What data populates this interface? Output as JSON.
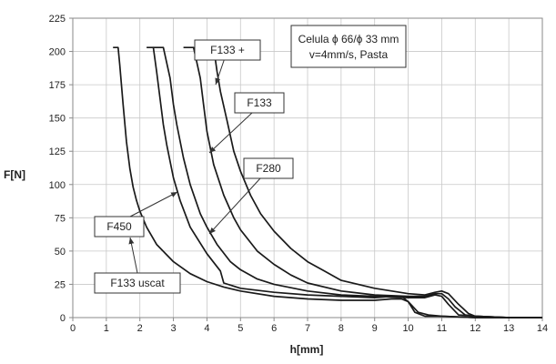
{
  "chart_data": {
    "type": "line",
    "title": "",
    "xlabel": "h[mm]",
    "ylabel": "F[N]",
    "xlim": [
      0,
      14
    ],
    "ylim": [
      0,
      225
    ],
    "x_ticks": [
      0,
      1,
      2,
      3,
      4,
      5,
      6,
      7,
      8,
      9,
      10,
      11,
      12,
      13,
      14
    ],
    "y_ticks": [
      0,
      25,
      50,
      75,
      100,
      125,
      150,
      175,
      200,
      225
    ],
    "grid": true,
    "line_color": "#1a1a1a",
    "info_box": [
      "Celula ϕ 66/ϕ 33 mm",
      "v=4mm/s, Pasta"
    ],
    "series": [
      {
        "name": "F133 uscat",
        "x": [
          1.2,
          1.35,
          1.4,
          1.5,
          1.6,
          1.7,
          1.8,
          1.9,
          2.0,
          2.2,
          2.5,
          3.0,
          3.5,
          4.0,
          4.5,
          5.0,
          6.0,
          7.0,
          8.0,
          9.0,
          9.5,
          9.8,
          10.0,
          10.2,
          10.5,
          11.0,
          12.0,
          13.0,
          14.0
        ],
        "y": [
          203,
          203,
          190,
          160,
          132,
          112,
          98,
          88,
          80,
          68,
          55,
          42,
          33,
          27,
          23,
          20,
          16,
          14,
          13,
          13,
          14,
          14,
          12,
          4,
          1,
          1,
          0,
          0,
          0
        ]
      },
      {
        "name": "F450",
        "x": [
          2.2,
          2.4,
          2.5,
          2.6,
          2.7,
          2.8,
          3.0,
          3.2,
          3.5,
          4.0,
          4.4,
          4.5,
          5.0,
          6.0,
          7.0,
          8.0,
          9.0,
          9.5,
          9.8,
          10.0,
          10.3,
          10.6,
          11.0,
          12.0,
          13.0,
          14.0
        ],
        "y": [
          203,
          203,
          185,
          165,
          145,
          130,
          105,
          88,
          68,
          48,
          35,
          26,
          22,
          19,
          17,
          16,
          15,
          16,
          16,
          12,
          4,
          2,
          1,
          0,
          0,
          0
        ]
      },
      {
        "name": "F280",
        "x": [
          2.4,
          2.7,
          2.9,
          3.0,
          3.1,
          3.3,
          3.5,
          3.8,
          4.0,
          4.3,
          4.7,
          5.0,
          5.5,
          6.0,
          7.0,
          8.0,
          9.0,
          10.0,
          10.5,
          10.8,
          11.0,
          11.2,
          11.5,
          12.0,
          13.0,
          14.0
        ],
        "y": [
          203,
          203,
          180,
          160,
          145,
          120,
          100,
          78,
          68,
          55,
          42,
          36,
          29,
          25,
          20,
          17,
          16,
          15,
          15,
          17,
          16,
          10,
          2,
          1,
          0,
          0
        ]
      },
      {
        "name": "F133",
        "x": [
          3.3,
          3.6,
          3.8,
          3.9,
          4.0,
          4.2,
          4.5,
          4.8,
          5.0,
          5.5,
          6.0,
          6.5,
          7.0,
          8.0,
          9.0,
          10.0,
          10.5,
          10.8,
          11.0,
          11.2,
          11.4,
          11.7,
          12.0,
          13.0,
          14.0
        ],
        "y": [
          203,
          203,
          180,
          160,
          140,
          115,
          92,
          75,
          66,
          50,
          40,
          32,
          26,
          20,
          17,
          16,
          16,
          18,
          18,
          14,
          8,
          2,
          1,
          0,
          0
        ]
      },
      {
        "name": "F133 +",
        "x": [
          3.9,
          4.2,
          4.3,
          4.4,
          4.6,
          4.8,
          5.0,
          5.3,
          5.6,
          6.0,
          6.5,
          7.0,
          7.5,
          8.0,
          9.0,
          10.0,
          10.5,
          10.8,
          11.0,
          11.2,
          11.5,
          11.8,
          12.0,
          13.0,
          14.0
        ],
        "y": [
          203,
          203,
          185,
          170,
          148,
          125,
          110,
          92,
          78,
          65,
          52,
          42,
          35,
          28,
          22,
          18,
          17,
          19,
          20,
          18,
          10,
          3,
          1,
          0,
          0
        ]
      }
    ],
    "callouts": [
      {
        "label": "F133 +",
        "series": "F133 +"
      },
      {
        "label": "F133",
        "series": "F133"
      },
      {
        "label": "F280",
        "series": "F280"
      },
      {
        "label": "F450",
        "series": "F450"
      },
      {
        "label": "F133 uscat",
        "series": "F133 uscat"
      }
    ]
  }
}
